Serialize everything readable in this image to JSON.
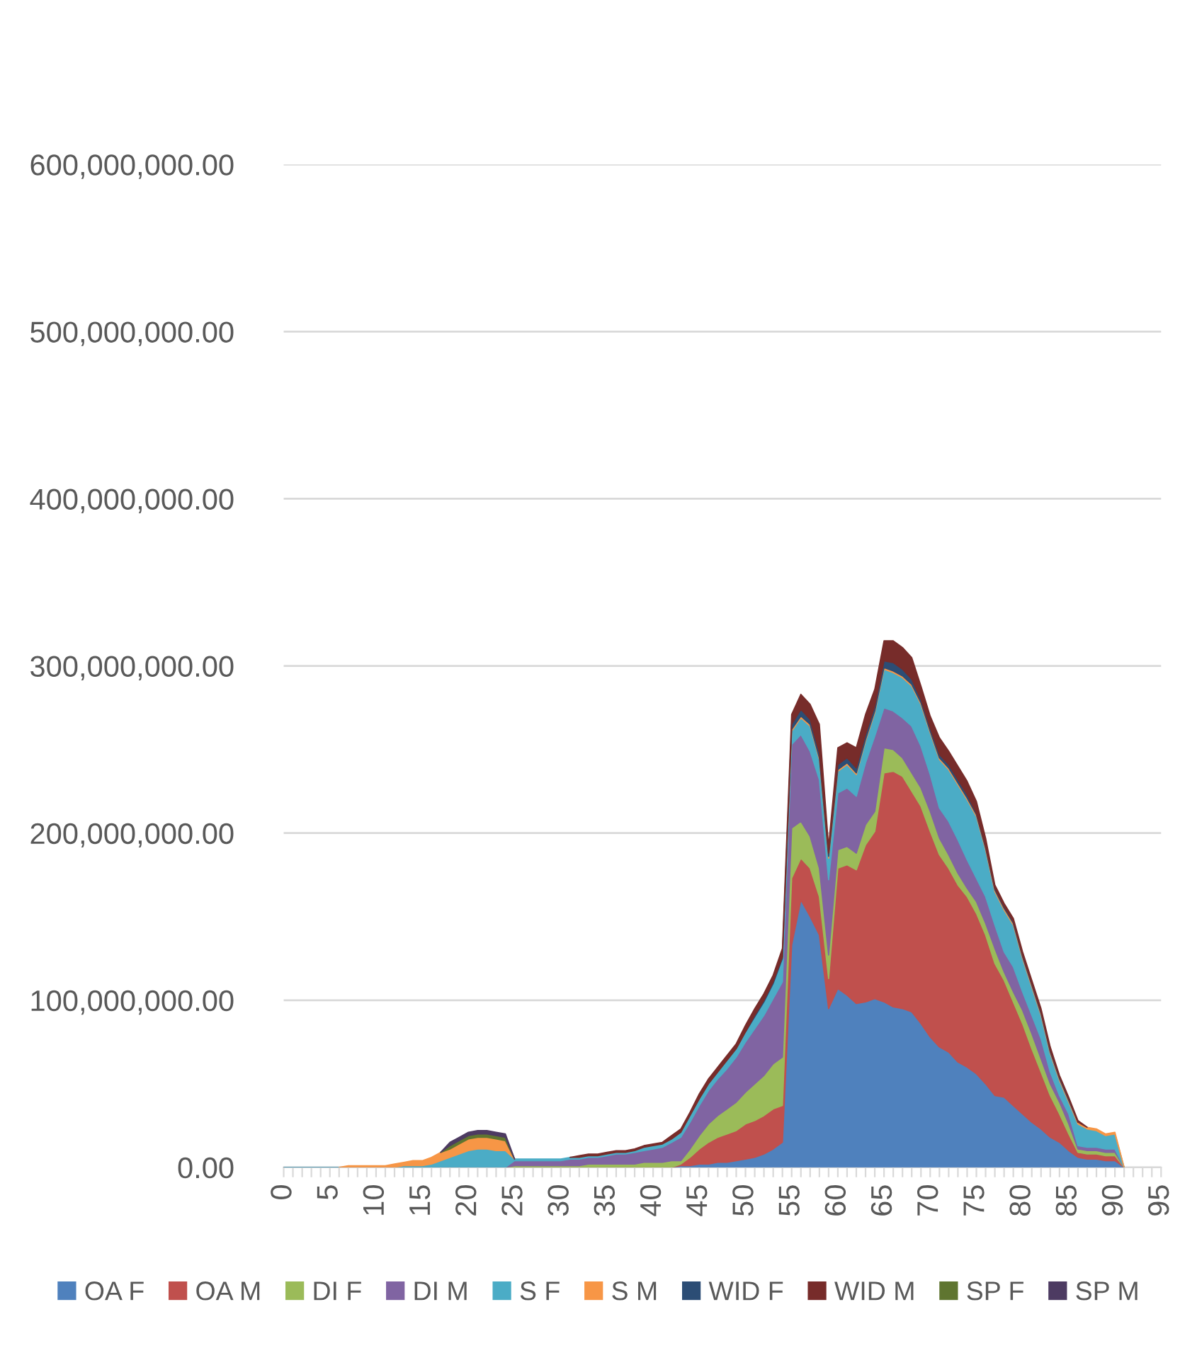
{
  "chart_data": {
    "type": "area",
    "stacked": true,
    "categories": [
      "0",
      null,
      null,
      null,
      null,
      "5",
      null,
      null,
      null,
      null,
      "10",
      null,
      null,
      null,
      null,
      "15",
      null,
      null,
      null,
      null,
      "20",
      null,
      null,
      null,
      null,
      "25",
      null,
      null,
      null,
      null,
      "30",
      null,
      null,
      null,
      null,
      "35",
      null,
      null,
      null,
      null,
      "40",
      null,
      null,
      null,
      null,
      "45",
      null,
      null,
      null,
      null,
      "50",
      null,
      null,
      null,
      null,
      "55",
      null,
      null,
      null,
      null,
      "60",
      null,
      null,
      null,
      null,
      "65",
      null,
      null,
      null,
      null,
      "70",
      null,
      null,
      null,
      null,
      "75",
      null,
      null,
      null,
      null,
      "80",
      null,
      null,
      null,
      null,
      "85",
      null,
      null,
      null,
      null,
      "90",
      null,
      null,
      null,
      null,
      "95"
    ],
    "ylim": [
      0,
      600000000
    ],
    "yticks": [
      {
        "value": 0,
        "label": "0.00"
      },
      {
        "value": 100000000,
        "label": "100,000,000.00"
      },
      {
        "value": 200000000,
        "label": "200,000,000.00"
      },
      {
        "value": 300000000,
        "label": "300,000,000.00"
      },
      {
        "value": 400000000,
        "label": "400,000,000.00"
      },
      {
        "value": 500000000,
        "label": "500,000,000.00"
      },
      {
        "value": 600000000,
        "label": "600,000,000.00"
      }
    ],
    "grid": "y",
    "legend": "bottom",
    "series": [
      {
        "name": "OA F",
        "color": "#4f81bd",
        "values": [
          0,
          0,
          0,
          0,
          0,
          0,
          0,
          0,
          0,
          0,
          0,
          0,
          0,
          0,
          0,
          0,
          0,
          0,
          0,
          0,
          0,
          0,
          0,
          0,
          0,
          0,
          0,
          0,
          0,
          0,
          0,
          0,
          0,
          0,
          0,
          0,
          0,
          0,
          0,
          0,
          0,
          0,
          0,
          1000000.0,
          1000000.0,
          2000000.0,
          2000000.0,
          3000000.0,
          3000000.0,
          4000000.0,
          5000000.0,
          6000000.0,
          8000000.0,
          11000000.0,
          15000000.0,
          133000000.0,
          160000000.0,
          150000000.0,
          139000000.0,
          95000000.0,
          107000000.0,
          103000000.0,
          98000000.0,
          99000000.0,
          101000000.0,
          99000000.0,
          96000000.0,
          95000000.0,
          93000000.0,
          86000000.0,
          78000000.0,
          72000000.0,
          69000000.0,
          63000000.0,
          60000000.0,
          56000000.0,
          50000000.0,
          43000000.0,
          42000000.0,
          37000000.0,
          32000000.0,
          27000000.0,
          23000000.0,
          18000000.0,
          15000000.0,
          10000000.0,
          6000000.0,
          5000000.0,
          5000000.0,
          4000000.0,
          4000000.0,
          0,
          null,
          null,
          null,
          null
        ]
      },
      {
        "name": "OA M",
        "color": "#c0504d",
        "values": [
          0,
          0,
          0,
          0,
          0,
          0,
          0,
          0,
          0,
          0,
          0,
          0,
          0,
          0,
          0,
          0,
          0,
          0,
          0,
          0,
          0,
          0,
          0,
          0,
          0,
          0,
          0,
          0,
          0,
          0,
          0,
          0,
          0,
          0,
          0,
          0,
          0,
          0,
          0,
          0,
          0,
          0,
          0,
          1000000.0,
          5000000.0,
          9000000.0,
          13000000.0,
          15000000.0,
          17000000.0,
          18000000.0,
          21000000.0,
          22000000.0,
          23000000.0,
          24000000.0,
          22000000.0,
          40000000.0,
          25000000.0,
          29000000.0,
          23000000.0,
          18000000.0,
          72000000.0,
          78000000.0,
          80000000.0,
          94000000.0,
          100000000.0,
          137000000.0,
          141000000.0,
          139000000.0,
          132000000.0,
          130000000.0,
          123000000.0,
          115000000.0,
          110000000.0,
          106000000.0,
          102000000.0,
          96000000.0,
          89000000.0,
          79000000.0,
          70000000.0,
          62000000.0,
          54000000.0,
          44000000.0,
          34000000.0,
          25000000.0,
          17000000.0,
          10000000.0,
          3000000.0,
          3000000.0,
          3000000.0,
          3000000.0,
          3000000.0,
          0,
          null,
          null,
          null,
          null
        ]
      },
      {
        "name": "DI F",
        "color": "#9bbb59",
        "values": [
          0,
          0,
          0,
          0,
          0,
          0,
          0,
          0,
          0,
          0,
          0,
          0,
          0,
          0,
          0,
          0,
          0,
          0,
          0,
          0,
          0,
          0,
          0,
          0,
          0,
          1000000.0,
          1000000.0,
          1000000.0,
          1000000.0,
          1000000.0,
          1000000.0,
          1000000.0,
          1000000.0,
          2000000.0,
          2000000.0,
          2000000.0,
          2000000.0,
          2000000.0,
          2000000.0,
          3000000.0,
          3000000.0,
          3000000.0,
          4000000.0,
          2000000.0,
          5000000.0,
          8000000.0,
          11000000.0,
          13000000.0,
          15000000.0,
          17000000.0,
          19000000.0,
          22000000.0,
          24000000.0,
          27000000.0,
          29000000.0,
          30000000.0,
          22000000.0,
          19000000.0,
          17000000.0,
          14000000.0,
          11000000.0,
          11000000.0,
          10000000.0,
          12000000.0,
          12000000.0,
          15000000.0,
          13000000.0,
          11000000.0,
          11000000.0,
          11000000.0,
          12000000.0,
          10000000.0,
          8000000.0,
          7000000.0,
          5000000.0,
          7000000.0,
          7000000.0,
          9000000.0,
          5000000.0,
          6000000.0,
          8000000.0,
          9000000.0,
          8000000.0,
          7000000.0,
          7000000.0,
          6000000.0,
          2000000.0,
          2000000.0,
          2000000.0,
          2000000.0,
          2000000.0,
          0,
          null,
          null,
          null,
          null
        ]
      },
      {
        "name": "DI M",
        "color": "#8064a2",
        "values": [
          0,
          0,
          0,
          0,
          0,
          0,
          0,
          0,
          0,
          0,
          0,
          0,
          0,
          0,
          0,
          0,
          0,
          0,
          0,
          0,
          0,
          0,
          0,
          0,
          0,
          3000000.0,
          3000000.0,
          3000000.0,
          3000000.0,
          3000000.0,
          3000000.0,
          4000000.0,
          4000000.0,
          4000000.0,
          4000000.0,
          5000000.0,
          6000000.0,
          6000000.0,
          7000000.0,
          7000000.0,
          8000000.0,
          9000000.0,
          11000000.0,
          14000000.0,
          16000000.0,
          18000000.0,
          20000000.0,
          22000000.0,
          24000000.0,
          27000000.0,
          30000000.0,
          33000000.0,
          36000000.0,
          39000000.0,
          45000000.0,
          50000000.0,
          52000000.0,
          51000000.0,
          53000000.0,
          45000000.0,
          34000000.0,
          35000000.0,
          34000000.0,
          37000000.0,
          45000000.0,
          24000000.0,
          23000000.0,
          24000000.0,
          28000000.0,
          25000000.0,
          22000000.0,
          18000000.0,
          20000000.0,
          20000000.0,
          17000000.0,
          14000000.0,
          16000000.0,
          14000000.0,
          12000000.0,
          15000000.0,
          11000000.0,
          11000000.0,
          12000000.0,
          7000000.0,
          4000000.0,
          6000000.0,
          2000000.0,
          2000000.0,
          2000000.0,
          2000000.0,
          2000000.0,
          0,
          null,
          null,
          null,
          null
        ]
      },
      {
        "name": "S F",
        "color": "#4bacc6",
        "values": [
          0,
          0,
          0,
          0,
          0,
          0,
          0,
          0,
          0,
          0,
          0,
          0,
          0,
          1000000.0,
          1000000.0,
          1000000.0,
          2000000.0,
          4000000.0,
          6000000.0,
          8000000.0,
          10000000.0,
          11000000.0,
          11000000.0,
          10000000.0,
          10000000.0,
          1000000.0,
          1000000.0,
          1000000.0,
          1000000.0,
          1000000.0,
          1000000.0,
          1000000.0,
          1000000.0,
          1000000.0,
          1000000.0,
          1000000.0,
          1000000.0,
          1000000.0,
          1000000.0,
          2000000.0,
          2000000.0,
          2000000.0,
          2000000.0,
          3000000.0,
          4000000.0,
          4000000.0,
          4000000.0,
          4000000.0,
          5000000.0,
          5000000.0,
          6000000.0,
          7000000.0,
          8000000.0,
          9000000.0,
          14000000.0,
          8000000.0,
          10000000.0,
          15000000.0,
          12000000.0,
          13000000.0,
          13000000.0,
          14000000.0,
          13000000.0,
          13000000.0,
          14000000.0,
          23000000.0,
          23000000.0,
          24000000.0,
          24000000.0,
          25000000.0,
          25000000.0,
          29000000.0,
          31000000.0,
          33000000.0,
          36000000.0,
          37000000.0,
          28000000.0,
          20000000.0,
          25000000.0,
          25000000.0,
          20000000.0,
          17000000.0,
          14000000.0,
          11000000.0,
          9000000.0,
          7000000.0,
          13000000.0,
          11000000.0,
          10000000.0,
          8000000.0,
          9000000.0,
          0,
          null,
          null,
          null,
          null
        ]
      },
      {
        "name": "S M",
        "color": "#f79646",
        "values": [
          null,
          null,
          null,
          null,
          null,
          null,
          0,
          1000000.0,
          1000000.0,
          1000000.0,
          1000000.0,
          1000000.0,
          2000000.0,
          2000000.0,
          3000000.0,
          3000000.0,
          4000000.0,
          5000000.0,
          5000000.0,
          6000000.0,
          7000000.0,
          7000000.0,
          7000000.0,
          7000000.0,
          6000000.0,
          0,
          null,
          null,
          null,
          null,
          null,
          null,
          null,
          null,
          null,
          null,
          null,
          null,
          null,
          null,
          null,
          null,
          null,
          null,
          null,
          null,
          null,
          null,
          null,
          null,
          null,
          null,
          null,
          null,
          0,
          1000000.0,
          1000000.0,
          1000000.0,
          1000000.0,
          1000000.0,
          1000000.0,
          1000000.0,
          1000000.0,
          1000000.0,
          1000000.0,
          1000000.0,
          1000000.0,
          1000000.0,
          1000000.0,
          1000000.0,
          1000000.0,
          1000000.0,
          1000000.0,
          1000000.0,
          1000000.0,
          1000000.0,
          1000000.0,
          1000000.0,
          1000000.0,
          1000000.0,
          1000000.0,
          1000000.0,
          1000000.0,
          1000000.0,
          1000000.0,
          1000000.0,
          1000000.0,
          1000000.0,
          1000000.0,
          1000000.0,
          1000000.0,
          0,
          null,
          null,
          null,
          null
        ]
      },
      {
        "name": "WID F",
        "color": "#2c4d75",
        "values": [
          null,
          null,
          null,
          null,
          null,
          null,
          null,
          null,
          null,
          null,
          null,
          null,
          null,
          null,
          null,
          null,
          null,
          null,
          null,
          null,
          null,
          null,
          null,
          null,
          null,
          null,
          null,
          null,
          null,
          null,
          null,
          null,
          null,
          null,
          null,
          null,
          null,
          null,
          null,
          null,
          null,
          null,
          null,
          null,
          null,
          null,
          null,
          null,
          null,
          null,
          0,
          1000000.0,
          1000000.0,
          1000000.0,
          1000000.0,
          3000000.0,
          4000000.0,
          3000000.0,
          3000000.0,
          2000000.0,
          3000000.0,
          3000000.0,
          3000000.0,
          3000000.0,
          3000000.0,
          4000000.0,
          5000000.0,
          4000000.0,
          3000000.0,
          2000000.0,
          2000000.0,
          2000000.0,
          2000000.0,
          2000000.0,
          2000000.0,
          1000000.0,
          1000000.0,
          1000000.0,
          1000000.0,
          1000000.0,
          1000000.0,
          1000000.0,
          1000000.0,
          1000000.0,
          1000000.0,
          1000000.0,
          0,
          null,
          null,
          null,
          null,
          null,
          null,
          null,
          null,
          null
        ]
      },
      {
        "name": "WID M",
        "color": "#772c2a",
        "values": [
          null,
          null,
          null,
          null,
          null,
          null,
          null,
          null,
          null,
          null,
          null,
          null,
          null,
          null,
          null,
          null,
          null,
          null,
          null,
          null,
          null,
          null,
          null,
          null,
          null,
          null,
          null,
          null,
          null,
          null,
          null,
          0,
          1000000.0,
          1000000.0,
          1000000.0,
          1000000.0,
          1000000.0,
          1000000.0,
          1000000.0,
          1000000.0,
          1000000.0,
          1000000.0,
          2000000.0,
          2000000.0,
          2000000.0,
          3000000.0,
          3000000.0,
          3000000.0,
          3000000.0,
          3000000.0,
          4000000.0,
          4000000.0,
          4000000.0,
          4000000.0,
          5000000.0,
          6000000.0,
          9000000.0,
          9000000.0,
          17000000.0,
          4000000.0,
          10000000.0,
          9000000.0,
          12000000.0,
          12000000.0,
          10000000.0,
          12000000.0,
          13000000.0,
          13000000.0,
          13000000.0,
          8000000.0,
          7000000.0,
          10000000.0,
          8000000.0,
          8000000.0,
          8000000.0,
          7000000.0,
          5000000.0,
          2000000.0,
          2000000.0,
          2000000.0,
          2000000.0,
          2000000.0,
          2000000.0,
          2000000.0,
          1000000.0,
          1000000.0,
          1000000.0,
          0,
          null,
          null,
          null,
          null,
          null,
          null,
          null,
          null
        ]
      },
      {
        "name": "SP F",
        "color": "#5f7530",
        "values": [
          null,
          null,
          null,
          null,
          null,
          null,
          null,
          null,
          null,
          null,
          null,
          null,
          null,
          null,
          null,
          null,
          null,
          0,
          2000000.0,
          2000000.0,
          2000000.0,
          2000000.0,
          2000000.0,
          2000000.0,
          2000000.0,
          0,
          null,
          null,
          null,
          null,
          null,
          null,
          null,
          null,
          null,
          null,
          null,
          null,
          null,
          null,
          null,
          null,
          null,
          null,
          null,
          null,
          null,
          null,
          null,
          null,
          null,
          null,
          null,
          null,
          null,
          null,
          null,
          null,
          null,
          null,
          null,
          null,
          null,
          null,
          null,
          null,
          null,
          null,
          null,
          null,
          null,
          null,
          null,
          null,
          null,
          null,
          null,
          null,
          null,
          null,
          null,
          null,
          null,
          null,
          null,
          null,
          null,
          null,
          null,
          null,
          null,
          null,
          null,
          null,
          null,
          null
        ]
      },
      {
        "name": "SP M",
        "color": "#4d3b62",
        "values": [
          null,
          null,
          null,
          null,
          null,
          null,
          null,
          null,
          null,
          null,
          null,
          null,
          null,
          null,
          null,
          null,
          null,
          0,
          2000000.0,
          2000000.0,
          2000000.0,
          2000000.0,
          2000000.0,
          2000000.0,
          2000000.0,
          0,
          null,
          null,
          null,
          null,
          null,
          null,
          null,
          null,
          null,
          null,
          null,
          null,
          null,
          null,
          null,
          null,
          null,
          null,
          null,
          null,
          null,
          null,
          null,
          null,
          null,
          null,
          null,
          null,
          null,
          null,
          null,
          null,
          null,
          null,
          null,
          null,
          null,
          null,
          null,
          null,
          null,
          null,
          null,
          null,
          null,
          null,
          null,
          null,
          null,
          null,
          null,
          null,
          null,
          null,
          null,
          null,
          null,
          null,
          null,
          null,
          null,
          null,
          null,
          null,
          null,
          null,
          null,
          null,
          null,
          null
        ]
      }
    ]
  }
}
